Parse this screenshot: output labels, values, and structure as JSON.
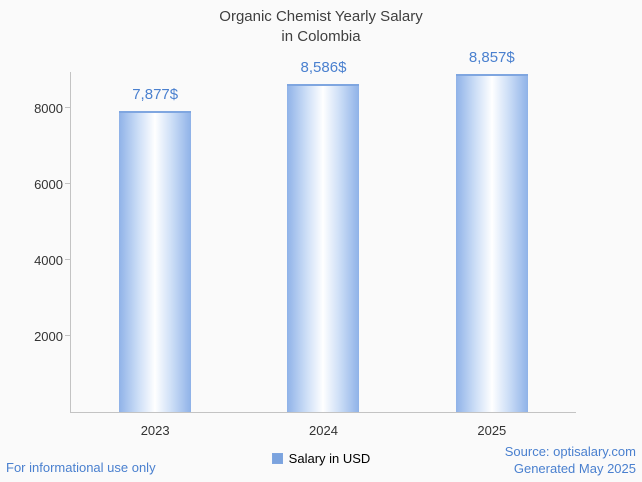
{
  "chart_data": {
    "type": "bar",
    "title": "Organic Chemist Yearly Salary in Colombia",
    "title_lines": [
      "Organic Chemist Yearly Salary",
      "in Colombia"
    ],
    "categories": [
      "2023",
      "2024",
      "2025"
    ],
    "values": [
      7877,
      8586,
      8857
    ],
    "value_labels": [
      "7,877$",
      "8,586$",
      "8,857$"
    ],
    "series_name": "Salary in USD",
    "xlabel": "",
    "ylabel": "",
    "ylim": [
      0,
      8950
    ],
    "yticks": [
      2000,
      4000,
      6000,
      8000
    ],
    "grid": false,
    "legend_position": "bottom"
  },
  "footer": {
    "disclaimer": "For informational use only",
    "source": "Source: optisalary.com",
    "generated": "Generated May 2025"
  },
  "colors": {
    "accent": "#4a80cf",
    "bar_edge": "#8fb2e8",
    "bar_mid": "#ffffff",
    "bar_top": "#7fa6e0",
    "legend_marker": "#7ba3de",
    "axis": "#c3c3c3",
    "title_text": "#3f3f3f",
    "tick_text": "#333333",
    "background": "#fafafa"
  }
}
